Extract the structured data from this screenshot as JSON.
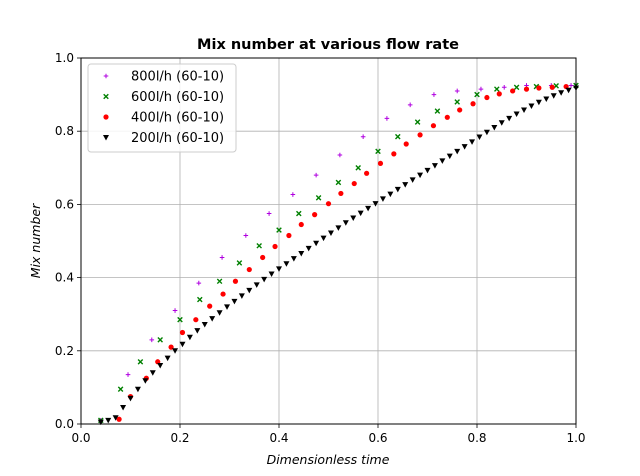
{
  "chart_data": {
    "type": "scatter",
    "title": "Mix number at various flow rate",
    "xlabel": "Dimensionless time",
    "ylabel": "Mix number",
    "xlim": [
      0.0,
      1.0
    ],
    "ylim": [
      0.0,
      1.0
    ],
    "xticks": [
      "0.0",
      "0.2",
      "0.4",
      "0.6",
      "0.8",
      "1.0"
    ],
    "yticks": [
      "0.0",
      "0.2",
      "0.4",
      "0.6",
      "0.8",
      "1.0"
    ],
    "grid": true,
    "legend_position": "upper-left",
    "series": [
      {
        "name": "800l/h (60-10)",
        "marker": "plus",
        "color": "#b000e0",
        "x": [
          0.04,
          0.095,
          0.143,
          0.19,
          0.238,
          0.285,
          0.333,
          0.38,
          0.428,
          0.475,
          0.523,
          0.57,
          0.618,
          0.665,
          0.713,
          0.76,
          0.808,
          0.855,
          0.9,
          0.95,
          0.99
        ],
        "y": [
          0.01,
          0.135,
          0.23,
          0.31,
          0.385,
          0.455,
          0.515,
          0.575,
          0.627,
          0.68,
          0.735,
          0.785,
          0.835,
          0.872,
          0.9,
          0.91,
          0.915,
          0.92,
          0.925,
          0.925,
          0.925
        ]
      },
      {
        "name": "600l/h (60-10)",
        "marker": "x",
        "color": "#008000",
        "x": [
          0.04,
          0.08,
          0.12,
          0.16,
          0.2,
          0.24,
          0.28,
          0.32,
          0.36,
          0.4,
          0.44,
          0.48,
          0.52,
          0.56,
          0.6,
          0.64,
          0.68,
          0.72,
          0.76,
          0.8,
          0.84,
          0.88,
          0.92,
          0.96,
          1.0
        ],
        "y": [
          0.01,
          0.095,
          0.17,
          0.23,
          0.285,
          0.34,
          0.39,
          0.44,
          0.487,
          0.53,
          0.575,
          0.618,
          0.66,
          0.7,
          0.745,
          0.785,
          0.825,
          0.855,
          0.88,
          0.9,
          0.915,
          0.92,
          0.922,
          0.924,
          0.925
        ]
      },
      {
        "name": "400l/h (60-10)",
        "marker": "circle",
        "color": "#ff0000",
        "x": [
          0.077,
          0.1,
          0.132,
          0.155,
          0.182,
          0.205,
          0.232,
          0.26,
          0.287,
          0.312,
          0.34,
          0.367,
          0.392,
          0.42,
          0.445,
          0.472,
          0.5,
          0.525,
          0.552,
          0.577,
          0.605,
          0.632,
          0.657,
          0.685,
          0.712,
          0.74,
          0.765,
          0.792,
          0.82,
          0.845,
          0.872,
          0.9,
          0.925,
          0.952,
          0.98
        ],
        "y": [
          0.013,
          0.075,
          0.125,
          0.17,
          0.21,
          0.25,
          0.285,
          0.322,
          0.355,
          0.39,
          0.422,
          0.455,
          0.485,
          0.515,
          0.545,
          0.572,
          0.602,
          0.63,
          0.657,
          0.685,
          0.712,
          0.738,
          0.765,
          0.79,
          0.815,
          0.838,
          0.858,
          0.875,
          0.892,
          0.902,
          0.91,
          0.915,
          0.918,
          0.92,
          0.922
        ]
      },
      {
        "name": "200l/h (60-10)",
        "marker": "triangle-down",
        "color": "#000000",
        "x": [
          0.04,
          0.055,
          0.07,
          0.085,
          0.1,
          0.115,
          0.13,
          0.145,
          0.16,
          0.175,
          0.19,
          0.205,
          0.22,
          0.235,
          0.25,
          0.265,
          0.28,
          0.295,
          0.31,
          0.325,
          0.34,
          0.355,
          0.37,
          0.385,
          0.4,
          0.415,
          0.43,
          0.445,
          0.46,
          0.475,
          0.49,
          0.505,
          0.52,
          0.535,
          0.55,
          0.565,
          0.58,
          0.595,
          0.61,
          0.625,
          0.64,
          0.655,
          0.67,
          0.685,
          0.7,
          0.715,
          0.73,
          0.745,
          0.76,
          0.775,
          0.79,
          0.805,
          0.82,
          0.835,
          0.85,
          0.865,
          0.88,
          0.895,
          0.91,
          0.925,
          0.94,
          0.955,
          0.97,
          0.985,
          1.0
        ],
        "y": [
          0.005,
          0.01,
          0.017,
          0.045,
          0.07,
          0.095,
          0.118,
          0.14,
          0.16,
          0.18,
          0.2,
          0.218,
          0.237,
          0.255,
          0.272,
          0.288,
          0.304,
          0.32,
          0.335,
          0.35,
          0.365,
          0.38,
          0.395,
          0.41,
          0.424,
          0.438,
          0.452,
          0.466,
          0.48,
          0.494,
          0.508,
          0.522,
          0.536,
          0.55,
          0.563,
          0.576,
          0.589,
          0.602,
          0.615,
          0.628,
          0.641,
          0.654,
          0.667,
          0.68,
          0.693,
          0.706,
          0.719,
          0.732,
          0.745,
          0.758,
          0.771,
          0.784,
          0.797,
          0.81,
          0.823,
          0.835,
          0.847,
          0.858,
          0.869,
          0.879,
          0.888,
          0.897,
          0.905,
          0.912,
          0.918
        ]
      }
    ]
  }
}
